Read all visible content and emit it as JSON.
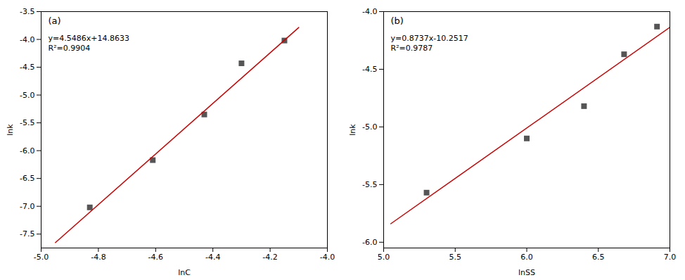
{
  "chart_data": [
    {
      "type": "scatter",
      "panel_label": "(a)",
      "xlabel": "lnC",
      "ylabel": "lnk",
      "series": [
        {
          "type": "scatter",
          "marker": "square",
          "color": "#555555",
          "x": [
            -4.83,
            -4.61,
            -4.43,
            -4.3,
            -4.15
          ],
          "values": [
            -7.02,
            -6.17,
            -5.35,
            -4.43,
            -4.02
          ]
        },
        {
          "type": "line",
          "color": "#cc0000",
          "x": [
            -4.95,
            -4.1
          ],
          "values": [
            -7.65227,
            -3.78596
          ]
        }
      ],
      "annotations": [
        "y=4.5486x+14.8633",
        "R²=0.9904"
      ],
      "xlim": [
        -5.0,
        -4.0
      ],
      "ylim": [
        -7.75,
        -3.5
      ],
      "xticks": [
        {
          "value": -5.0,
          "label": "-5.0"
        },
        -4.8,
        -4.6,
        -4.4,
        -4.2,
        {
          "value": -4.0,
          "label": "-4.0"
        }
      ],
      "yticks": [
        -7.5,
        {
          "value": -7.0,
          "label": "-7.0"
        },
        -6.5,
        {
          "value": -6.0,
          "label": "-6.0"
        },
        -5.5,
        {
          "value": -5.0,
          "label": "-5.0"
        },
        -4.5,
        {
          "value": -4.0,
          "label": "-4.0"
        },
        -3.5
      ],
      "grid": false
    },
    {
      "type": "scatter",
      "panel_label": "(b)",
      "xlabel": "lnSS",
      "ylabel": "lnk",
      "series": [
        {
          "type": "scatter",
          "marker": "square",
          "color": "#555555",
          "x": [
            5.3,
            6.0,
            6.4,
            6.68,
            6.91
          ],
          "values": [
            -5.57,
            -5.1,
            -4.82,
            -4.37,
            -4.13
          ]
        },
        {
          "type": "line",
          "color": "#cc0000",
          "x": [
            5.05,
            7.0
          ],
          "values": [
            -5.839515,
            -4.1358
          ]
        }
      ],
      "annotations": [
        "y=0.8737x-10.2517",
        "R²=0.9787"
      ],
      "xlim": [
        5.0,
        7.0
      ],
      "ylim": [
        -6.05,
        -4.0
      ],
      "xticks": [
        {
          "value": 5.0,
          "label": "5.0"
        },
        5.5,
        {
          "value": 6.0,
          "label": "6.0"
        },
        6.5,
        {
          "value": 7.0,
          "label": "7.0"
        }
      ],
      "yticks": [
        {
          "value": -6.0,
          "label": "-6.0"
        },
        -5.5,
        {
          "value": -5.0,
          "label": "-5.0"
        },
        -4.5,
        {
          "value": -4.0,
          "label": "-4.0"
        }
      ],
      "grid": false
    }
  ]
}
